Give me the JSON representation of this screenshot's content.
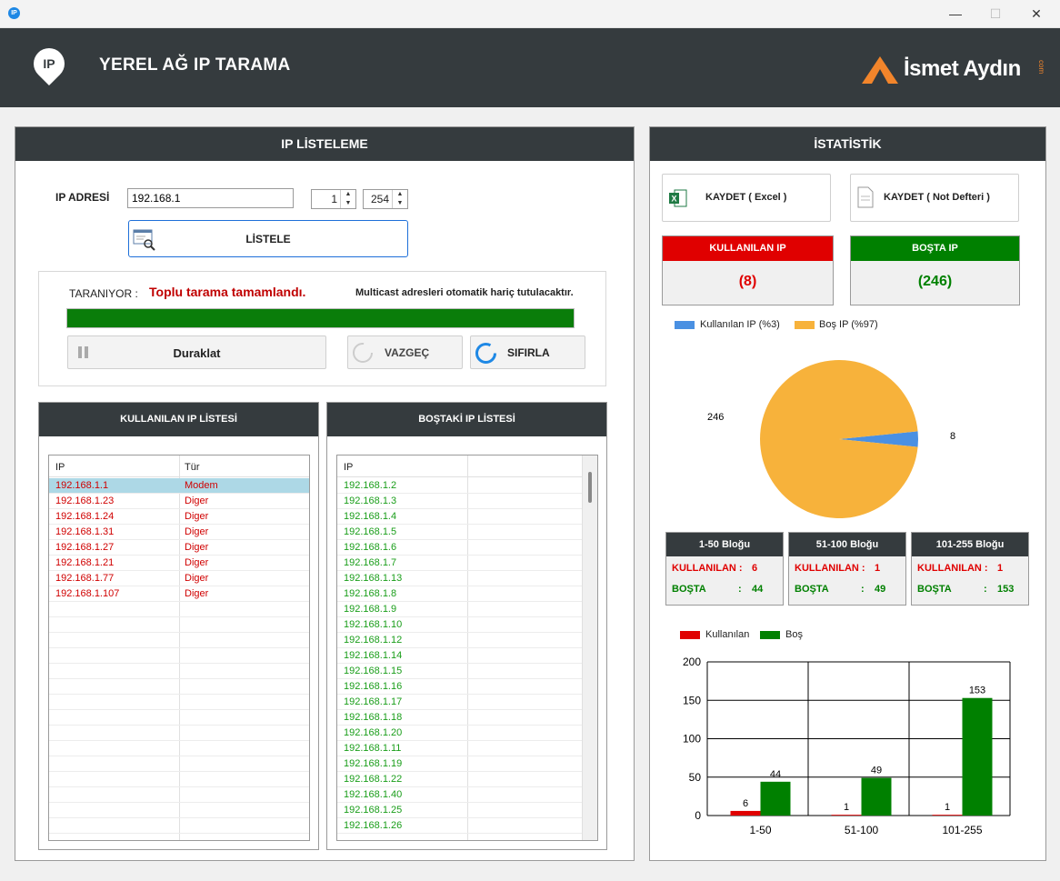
{
  "app": {
    "title": "YEREL AĞ IP TARAMA",
    "icon_label": "IP",
    "logo_text": "İsmet Aydın",
    "logo_suffix": "com"
  },
  "window": {
    "minimize": "—",
    "maximize": "☐",
    "close": "✕"
  },
  "listing": {
    "title": "IP LİSTELEME",
    "ip_label": "IP ADRESİ",
    "ip_value": "192.168.1",
    "range_start": "1",
    "range_end": "254",
    "list_button": "LİSTELE",
    "scanning_label": "TARANIYOR :",
    "scan_status": "Toplu tarama tamamlandı.",
    "multicast_note": "Multicast adresleri otomatik hariç tutulacaktır.",
    "progress": 1.0,
    "pause_button": "Duraklat",
    "cancel_button": "VAZGEÇ",
    "reset_button": "SIFIRLA"
  },
  "used_list": {
    "title": "KULLANILAN IP LİSTESİ",
    "col_ip": "IP",
    "col_type": "Tür",
    "rows": [
      {
        "ip": "192.168.1.1",
        "type": "Modem"
      },
      {
        "ip": "192.168.1.23",
        "type": "Diger"
      },
      {
        "ip": "192.168.1.24",
        "type": "Diger"
      },
      {
        "ip": "192.168.1.31",
        "type": "Diger"
      },
      {
        "ip": "192.168.1.27",
        "type": "Diger"
      },
      {
        "ip": "192.168.1.21",
        "type": "Diger"
      },
      {
        "ip": "192.168.1.77",
        "type": "Diger"
      },
      {
        "ip": "192.168.1.107",
        "type": "Diger"
      }
    ]
  },
  "free_list": {
    "title": "BOŞTAKİ IP LİSTESİ",
    "col_ip": "IP",
    "rows": [
      "192.168.1.2",
      "192.168.1.3",
      "192.168.1.4",
      "192.168.1.5",
      "192.168.1.6",
      "192.168.1.7",
      "192.168.1.13",
      "192.168.1.8",
      "192.168.1.9",
      "192.168.1.10",
      "192.168.1.12",
      "192.168.1.14",
      "192.168.1.15",
      "192.168.1.16",
      "192.168.1.17",
      "192.168.1.18",
      "192.168.1.20",
      "192.168.1.11",
      "192.168.1.19",
      "192.168.1.22",
      "192.168.1.40",
      "192.168.1.25",
      "192.168.1.26"
    ]
  },
  "stats": {
    "title": "İSTATİSTİK",
    "save_excel": "KAYDET ( Excel )",
    "save_notepad": "KAYDET ( Not Defteri )",
    "used_label": "KULLANILAN IP",
    "used_value": "(8)",
    "free_label": "BOŞTA IP",
    "free_value": "(246)",
    "colors": {
      "red": "#e00000",
      "green": "#008000",
      "dark": "#353b3e",
      "pie_used": "#4a90e2",
      "pie_free": "#f7b23b"
    }
  },
  "pie": {
    "type": "pie",
    "legend": [
      "Kullanılan IP  (%3)",
      "Boş IP  (%97)"
    ],
    "values": [
      8,
      246
    ],
    "labels": [
      "8",
      "246"
    ]
  },
  "blocks": [
    {
      "title": "1-50  Bloğu",
      "used_label": "KULLANILAN :",
      "used": "6",
      "free_label": "BOŞTA",
      "sep": ":",
      "free": "44"
    },
    {
      "title": "51-100  Bloğu",
      "used_label": "KULLANILAN :",
      "used": "1",
      "free_label": "BOŞTA",
      "sep": ":",
      "free": "49"
    },
    {
      "title": "101-255  Bloğu",
      "used_label": "KULLANILAN :",
      "used": "1",
      "free_label": "BOŞTA",
      "sep": ":",
      "free": "153"
    }
  ],
  "chart_data": {
    "type": "bar",
    "categories": [
      "1-50",
      "51-100",
      "101-255"
    ],
    "series": [
      {
        "name": "Kullanılan",
        "values": [
          6,
          1,
          1
        ]
      },
      {
        "name": "Boş",
        "values": [
          44,
          49,
          153
        ]
      }
    ],
    "ylim": [
      0,
      200
    ],
    "yticks": [
      "0",
      "50",
      "100",
      "150",
      "200"
    ],
    "grid": true,
    "legend": "top-left"
  }
}
